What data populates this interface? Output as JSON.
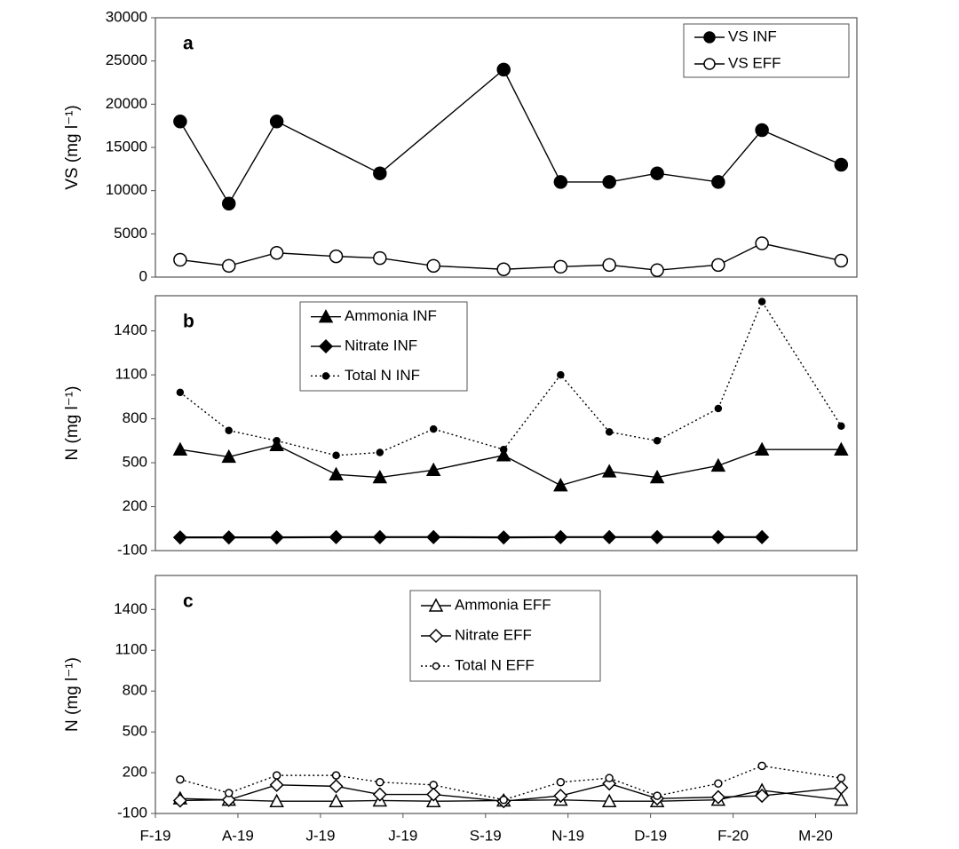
{
  "chart_data": [
    {
      "type": "line",
      "panel": "a",
      "y_label": "VS (mg l⁻¹)",
      "xlim": [
        0,
        8.5
      ],
      "ylim": [
        0,
        30000
      ],
      "yticks": [
        0,
        5000,
        10000,
        15000,
        20000,
        25000,
        30000
      ],
      "series": [
        {
          "name": "VS INF",
          "color": "#000000",
          "marker": "circle",
          "filled": true,
          "line_style": "solid",
          "x": [
            0.3,
            0.89,
            1.47,
            2.72,
            4.22,
            4.91,
            5.5,
            6.08,
            6.82,
            7.35,
            8.31
          ],
          "values": [
            18000,
            8500,
            18000,
            12000,
            24000,
            11000,
            11000,
            12000,
            11000,
            17000,
            13000
          ]
        },
        {
          "name": "VS EFF",
          "color": "#000000",
          "marker": "circle",
          "filled": false,
          "line_style": "solid",
          "x": [
            0.3,
            0.89,
            1.47,
            2.19,
            2.72,
            3.37,
            4.22,
            4.91,
            5.5,
            6.08,
            6.82,
            7.35,
            8.31
          ],
          "values": [
            2000,
            1300,
            2800,
            2400,
            2200,
            1300,
            900,
            1200,
            1400,
            800,
            1400,
            3900,
            1900
          ]
        }
      ]
    },
    {
      "type": "line",
      "panel": "b",
      "y_label": "N  (mg l⁻¹)",
      "xlim": [
        0,
        8.5
      ],
      "ylim": [
        -100,
        1640
      ],
      "yticks": [
        -100,
        200,
        500,
        800,
        1100,
        1400
      ],
      "series": [
        {
          "name": "Ammonia INF",
          "color": "#000000",
          "marker": "triangle",
          "filled": true,
          "line_style": "solid",
          "x": [
            0.3,
            0.89,
            1.47,
            2.19,
            2.72,
            3.37,
            4.22,
            4.91,
            5.5,
            6.08,
            6.82,
            7.35,
            8.31
          ],
          "values": [
            590,
            540,
            620,
            420,
            400,
            450,
            550,
            345,
            440,
            400,
            480,
            590,
            590
          ]
        },
        {
          "name": "Nitrate INF",
          "color": "#000000",
          "marker": "diamond",
          "filled": true,
          "line_style": "solid",
          "x": [
            0.3,
            0.89,
            1.47,
            2.19,
            2.72,
            3.37,
            4.22,
            4.91,
            5.5,
            6.08,
            6.82,
            7.35
          ],
          "values": [
            -10,
            -10,
            -10,
            -8,
            -8,
            -8,
            -10,
            -8,
            -8,
            -8,
            -8,
            -8
          ]
        },
        {
          "name": "Total N  INF",
          "color": "#000000",
          "marker": "dot",
          "filled": true,
          "line_style": "dotted",
          "x": [
            0.3,
            0.89,
            1.47,
            2.19,
            2.72,
            3.37,
            4.22,
            4.91,
            5.5,
            6.08,
            6.82,
            7.35,
            8.31
          ],
          "values": [
            980,
            720,
            650,
            550,
            570,
            730,
            590,
            1100,
            710,
            650,
            870,
            1600,
            750
          ]
        }
      ]
    },
    {
      "type": "line",
      "panel": "c",
      "y_label": "N  (mg l⁻¹)",
      "xlim": [
        0,
        8.5
      ],
      "ylim": [
        -100,
        1650
      ],
      "yticks": [
        -100,
        200,
        500,
        800,
        1100,
        1400
      ],
      "xticks": [
        {
          "value": 0,
          "label": "F-19"
        },
        {
          "value": 1,
          "label": "A-19"
        },
        {
          "value": 2,
          "label": "J-19"
        },
        {
          "value": 3,
          "label": "J-19"
        },
        {
          "value": 4,
          "label": "S-19"
        },
        {
          "value": 5,
          "label": "N-19"
        },
        {
          "value": 6,
          "label": "D-19"
        },
        {
          "value": 7,
          "label": "F-20"
        },
        {
          "value": 8,
          "label": "M-20"
        }
      ],
      "series": [
        {
          "name": "Ammonia EFF",
          "color": "#000000",
          "marker": "triangle",
          "filled": false,
          "line_style": "solid",
          "x": [
            0.3,
            0.89,
            1.47,
            2.19,
            2.72,
            3.37,
            4.22,
            4.91,
            5.5,
            6.08,
            6.82,
            7.35,
            8.31
          ],
          "values": [
            10,
            0,
            -10,
            -10,
            -5,
            -10,
            -5,
            0,
            -10,
            -10,
            0,
            70,
            0
          ]
        },
        {
          "name": "Nitrate EFF",
          "color": "#000000",
          "marker": "diamond",
          "filled": false,
          "line_style": "solid",
          "x": [
            0.3,
            0.89,
            1.47,
            2.19,
            2.72,
            3.37,
            4.22,
            4.91,
            5.5,
            6.08,
            6.82,
            7.35,
            8.31
          ],
          "values": [
            -5,
            0,
            110,
            100,
            40,
            40,
            -10,
            30,
            120,
            10,
            20,
            30,
            90
          ]
        },
        {
          "name": "Total N  EFF",
          "color": "#000000",
          "marker": "dot",
          "filled": false,
          "line_style": "dotted",
          "x": [
            0.3,
            0.89,
            1.47,
            2.19,
            2.72,
            3.37,
            4.22,
            4.91,
            5.5,
            6.08,
            6.82,
            7.35,
            8.31
          ],
          "values": [
            150,
            50,
            180,
            180,
            130,
            110,
            0,
            130,
            160,
            30,
            120,
            250,
            160
          ]
        }
      ]
    }
  ]
}
